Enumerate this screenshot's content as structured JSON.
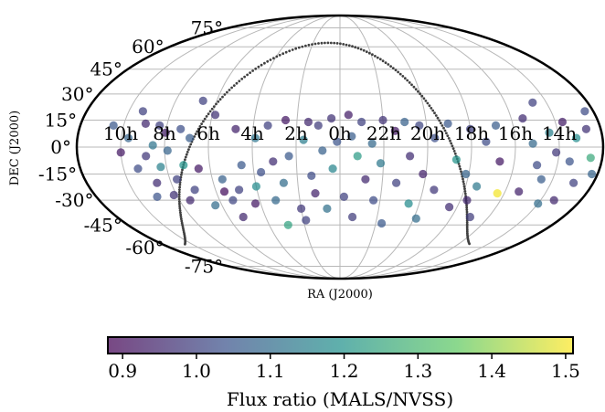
{
  "chart_data": {
    "type": "scatter",
    "projection": "mollweide",
    "xlabel": "RA (J2000)",
    "ylabel": "DEC (J2000)",
    "ra_tick_labels": [
      "10h",
      "8h",
      "6h",
      "4h",
      "2h",
      "0h",
      "22h",
      "20h",
      "18h",
      "16h",
      "14h"
    ],
    "dec_tick_labels": [
      "-75°",
      "-60°",
      "-45°",
      "-30°",
      "-15°",
      "0°",
      "15°",
      "30°",
      "45°",
      "60°",
      "75°"
    ],
    "dec_tick_values": [
      -75,
      -60,
      -45,
      -30,
      -15,
      0,
      15,
      30,
      45,
      60,
      75
    ],
    "grid": true,
    "colorbar": {
      "label": "Flux ratio (MALS/NVSS)",
      "range": [
        0.88,
        1.51
      ],
      "tick_labels": [
        "0.9",
        "1.0",
        "1.1",
        "1.2",
        "1.3",
        "1.4",
        "1.5"
      ],
      "tick_values": [
        0.9,
        1.0,
        1.1,
        1.2,
        1.3,
        1.4,
        1.5
      ],
      "colormap": "viridis",
      "stops": [
        "#440154",
        "#3b528b",
        "#21918c",
        "#5ec962",
        "#fde725"
      ],
      "alpha": 0.72
    },
    "galactic_plane": "dotted curve, color #404040",
    "point_color_default": "#5a5c8c",
    "points": [
      {
        "lon": 135,
        "lat": 13,
        "ratio": 0.95
      },
      {
        "lon": 140,
        "lat": 20,
        "ratio": 1.0
      },
      {
        "lon": 145,
        "lat": 5,
        "ratio": 1.08
      },
      {
        "lon": 150,
        "lat": -3,
        "ratio": 0.92
      },
      {
        "lon": 157,
        "lat": 12,
        "ratio": 1.05
      },
      {
        "lon": 133,
        "lat": -5,
        "ratio": 0.98
      },
      {
        "lon": 128,
        "lat": 1,
        "ratio": 1.12
      },
      {
        "lon": 140,
        "lat": -12,
        "ratio": 1.02
      },
      {
        "lon": 130,
        "lat": -20,
        "ratio": 0.96
      },
      {
        "lon": 125,
        "lat": 12,
        "ratio": 1.0
      },
      {
        "lon": 120,
        "lat": 8,
        "ratio": 0.93
      },
      {
        "lon": 118,
        "lat": -2,
        "ratio": 1.08
      },
      {
        "lon": 124,
        "lat": -11,
        "ratio": 1.15
      },
      {
        "lon": 115,
        "lat": -18,
        "ratio": 1.0
      },
      {
        "lon": 135,
        "lat": -28,
        "ratio": 1.04
      },
      {
        "lon": 122,
        "lat": -27,
        "ratio": 0.97
      },
      {
        "lon": 110,
        "lat": 10,
        "ratio": 1.03
      },
      {
        "lon": 108,
        "lat": -10,
        "ratio": 1.2
      },
      {
        "lon": 112,
        "lat": -30,
        "ratio": 0.95
      },
      {
        "lon": 100,
        "lat": 26,
        "ratio": 1.0
      },
      {
        "lon": 103,
        "lat": 5,
        "ratio": 1.06
      },
      {
        "lon": 98,
        "lat": -12,
        "ratio": 0.92
      },
      {
        "lon": 105,
        "lat": -24,
        "ratio": 1.0
      },
      {
        "lon": 95,
        "lat": -33,
        "ratio": 1.1
      },
      {
        "lon": 88,
        "lat": 18,
        "ratio": 0.97
      },
      {
        "lon": 84,
        "lat": -25,
        "ratio": 0.9
      },
      {
        "lon": 80,
        "lat": -30,
        "ratio": 1.01
      },
      {
        "lon": 78,
        "lat": -40,
        "ratio": 0.95
      },
      {
        "lon": 83,
        "lat": -18,
        "ratio": 1.07
      },
      {
        "lon": 72,
        "lat": 10,
        "ratio": 0.94
      },
      {
        "lon": 68,
        "lat": -10,
        "ratio": 1.05
      },
      {
        "lon": 73,
        "lat": -24,
        "ratio": 1.0
      },
      {
        "lon": 64,
        "lat": -32,
        "ratio": 0.92
      },
      {
        "lon": 58,
        "lat": 5,
        "ratio": 1.12
      },
      {
        "lon": 55,
        "lat": -14,
        "ratio": 1.03
      },
      {
        "lon": 60,
        "lat": -22,
        "ratio": 1.18
      },
      {
        "lon": 50,
        "lat": 12,
        "ratio": 1.0
      },
      {
        "lon": 46,
        "lat": -8,
        "ratio": 0.96
      },
      {
        "lon": 48,
        "lat": -30,
        "ratio": 1.09
      },
      {
        "lon": 44,
        "lat": -45,
        "ratio": 1.24
      },
      {
        "lon": 38,
        "lat": 15,
        "ratio": 0.92
      },
      {
        "lon": 35,
        "lat": -5,
        "ratio": 1.05
      },
      {
        "lon": 40,
        "lat": -20,
        "ratio": 1.1
      },
      {
        "lon": 30,
        "lat": -35,
        "ratio": 0.98
      },
      {
        "lon": 25,
        "lat": 4,
        "ratio": 1.14
      },
      {
        "lon": 22,
        "lat": 14,
        "ratio": 0.95
      },
      {
        "lon": 20,
        "lat": -16,
        "ratio": 1.02
      },
      {
        "lon": 28,
        "lat": -42,
        "ratio": 1.0
      },
      {
        "lon": 15,
        "lat": 12,
        "ratio": 0.99
      },
      {
        "lon": 12,
        "lat": -2,
        "ratio": 1.07
      },
      {
        "lon": 18,
        "lat": -26,
        "ratio": 0.94
      },
      {
        "lon": 10,
        "lat": -35,
        "ratio": 1.11
      },
      {
        "lon": 6,
        "lat": 16,
        "ratio": 0.97
      },
      {
        "lon": 2,
        "lat": 3,
        "ratio": 1.04
      },
      {
        "lon": 5,
        "lat": -12,
        "ratio": 1.16
      },
      {
        "lon": -3,
        "lat": -28,
        "ratio": 1.0
      },
      {
        "lon": -6,
        "lat": 18,
        "ratio": 0.93
      },
      {
        "lon": -8,
        "lat": 6,
        "ratio": 1.06
      },
      {
        "lon": -12,
        "lat": -5,
        "ratio": 1.22
      },
      {
        "lon": -10,
        "lat": -40,
        "ratio": 0.99
      },
      {
        "lon": -15,
        "lat": 14,
        "ratio": 1.0
      },
      {
        "lon": -18,
        "lat": -18,
        "ratio": 0.95
      },
      {
        "lon": -22,
        "lat": 2,
        "ratio": 1.09
      },
      {
        "lon": -25,
        "lat": -30,
        "ratio": 1.02
      },
      {
        "lon": -30,
        "lat": 15,
        "ratio": 0.97
      },
      {
        "lon": -28,
        "lat": -9,
        "ratio": 1.13
      },
      {
        "lon": -35,
        "lat": -44,
        "ratio": 1.05
      },
      {
        "lon": -38,
        "lat": 9,
        "ratio": 0.92
      },
      {
        "lon": -40,
        "lat": -20,
        "ratio": 1.0
      },
      {
        "lon": -45,
        "lat": 14,
        "ratio": 1.07
      },
      {
        "lon": -48,
        "lat": -5,
        "ratio": 0.96
      },
      {
        "lon": -52,
        "lat": -32,
        "ratio": 1.18
      },
      {
        "lon": -55,
        "lat": 12,
        "ratio": 1.01
      },
      {
        "lon": -58,
        "lat": -15,
        "ratio": 0.94
      },
      {
        "lon": -62,
        "lat": -41,
        "ratio": 1.1
      },
      {
        "lon": -65,
        "lat": 5,
        "ratio": 1.03
      },
      {
        "lon": -68,
        "lat": -24,
        "ratio": 0.98
      },
      {
        "lon": -75,
        "lat": 13,
        "ratio": 1.05
      },
      {
        "lon": -80,
        "lat": -7,
        "ratio": 1.2
      },
      {
        "lon": -84,
        "lat": -34,
        "ratio": 0.96
      },
      {
        "lon": -90,
        "lat": 10,
        "ratio": 1.0
      },
      {
        "lon": -88,
        "lat": -15,
        "ratio": 1.08
      },
      {
        "lon": -95,
        "lat": -30,
        "ratio": 0.95
      },
      {
        "lon": -100,
        "lat": 3,
        "ratio": 1.02
      },
      {
        "lon": -98,
        "lat": -22,
        "ratio": 1.13
      },
      {
        "lon": -105,
        "lat": -40,
        "ratio": 0.99
      },
      {
        "lon": -108,
        "lat": 12,
        "ratio": 1.06
      },
      {
        "lon": -110,
        "lat": -8,
        "ratio": 0.92
      },
      {
        "lon": -115,
        "lat": -26,
        "ratio": 1.5
      },
      {
        "lon": -128,
        "lat": 16,
        "ratio": 0.96
      },
      {
        "lon": -132,
        "lat": 2,
        "ratio": 1.09
      },
      {
        "lon": -136,
        "lat": -10,
        "ratio": 1.02
      },
      {
        "lon": -130,
        "lat": -25,
        "ratio": 0.94
      },
      {
        "lon": -140,
        "lat": 25,
        "ratio": 1.0
      },
      {
        "lon": -144,
        "lat": 8,
        "ratio": 1.15
      },
      {
        "lon": -148,
        "lat": -3,
        "ratio": 0.98
      },
      {
        "lon": -142,
        "lat": -18,
        "ratio": 1.06
      },
      {
        "lon": -150,
        "lat": -32,
        "ratio": 1.1
      },
      {
        "lon": -155,
        "lat": 14,
        "ratio": 0.93
      },
      {
        "lon": -158,
        "lat": -8,
        "ratio": 1.04
      },
      {
        "lon": -162,
        "lat": 5,
        "ratio": 1.18
      },
      {
        "lon": -166,
        "lat": -20,
        "ratio": 1.0
      },
      {
        "lon": -170,
        "lat": 10,
        "ratio": 0.97
      },
      {
        "lon": -172,
        "lat": -6,
        "ratio": 1.26
      },
      {
        "lon": -176,
        "lat": -15,
        "ratio": 1.08
      },
      {
        "lon": -160,
        "lat": -30,
        "ratio": 0.95
      },
      {
        "lon": -174,
        "lat": 20,
        "ratio": 1.02
      }
    ]
  }
}
